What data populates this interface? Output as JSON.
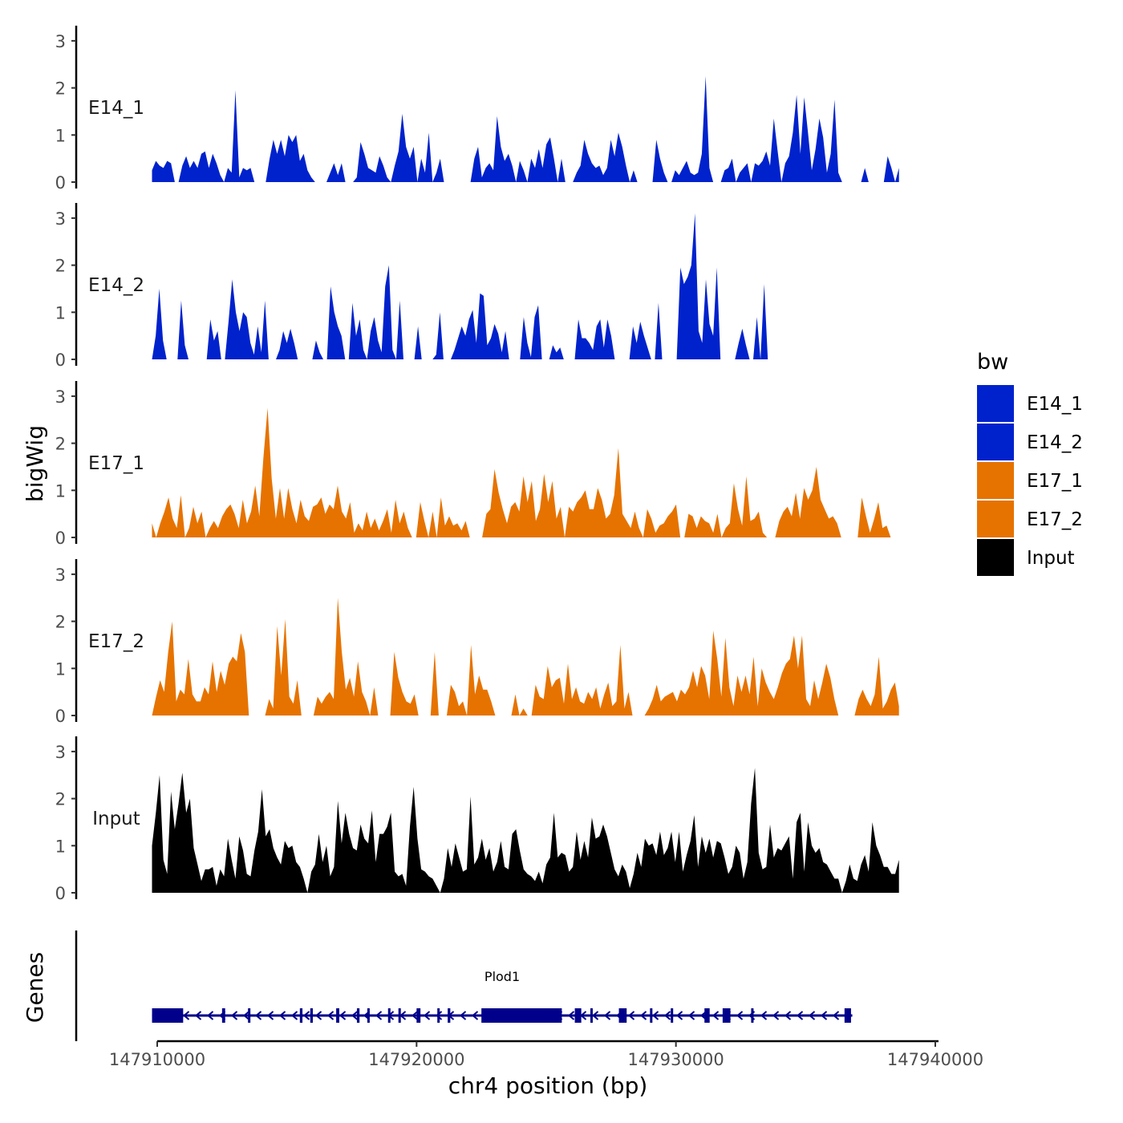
{
  "chart_data": {
    "type": "area",
    "title": "",
    "ylabel": "bigWig",
    "genes_label": "Genes",
    "xlabel": "chr4 position (bp)",
    "xlim": [
      147908000,
      147940000
    ],
    "data_xrange": [
      147909800,
      147938600
    ],
    "x_ticks": [
      147910000,
      147920000,
      147930000,
      147940000
    ],
    "x_tick_labels": [
      "147910000",
      "147920000",
      "147930000",
      "147940000"
    ],
    "ylim": [
      0,
      3.3
    ],
    "y_ticks": [
      0,
      1,
      2,
      3
    ],
    "y_tick_labels": [
      "0",
      "1",
      "2",
      "3"
    ],
    "legend": {
      "title": "bw",
      "position": "right",
      "entries": [
        {
          "label": "E14_1",
          "color": "#0022cc"
        },
        {
          "label": "E14_2",
          "color": "#0022cc"
        },
        {
          "label": "E17_1",
          "color": "#e67300"
        },
        {
          "label": "E17_2",
          "color": "#e67300"
        },
        {
          "label": "Input",
          "color": "#000000"
        }
      ]
    },
    "series": [
      {
        "name": "E14_1",
        "color": "#0022cc",
        "values": [
          0.25,
          0.45,
          0.35,
          0.3,
          0.45,
          0.4,
          0.0,
          0.0,
          0.35,
          0.55,
          0.3,
          0.45,
          0.3,
          0.6,
          0.65,
          0.3,
          0.6,
          0.4,
          0.15,
          0.0,
          0.3,
          0.2,
          1.95,
          0.1,
          0.3,
          0.25,
          0.3,
          0.0,
          0.0,
          0.0,
          0.0,
          0.5,
          0.9,
          0.6,
          0.9,
          0.55,
          1.0,
          0.85,
          1.0,
          0.45,
          0.6,
          0.25,
          0.1,
          0.0,
          0.0,
          0.0,
          0.0,
          0.2,
          0.4,
          0.15,
          0.4,
          0.0,
          0.0,
          0.0,
          0.1,
          0.85,
          0.6,
          0.3,
          0.25,
          0.2,
          0.55,
          0.35,
          0.1,
          0.0,
          0.35,
          0.65,
          1.45,
          0.75,
          0.5,
          0.75,
          0.0,
          0.5,
          0.2,
          1.05,
          0.0,
          0.2,
          0.5,
          0.0,
          0.0,
          0.0,
          0.0,
          0.0,
          0.0,
          0.0,
          0.0,
          0.5,
          0.75,
          0.1,
          0.3,
          0.4,
          0.25,
          1.4,
          0.75,
          0.45,
          0.6,
          0.35,
          0.0,
          0.45,
          0.25,
          0.0,
          0.5,
          0.3,
          0.7,
          0.3,
          0.8,
          0.95,
          0.5,
          0.0,
          0.5,
          0.0,
          0.0,
          0.0,
          0.2,
          0.35,
          0.9,
          0.6,
          0.4,
          0.3,
          0.35,
          0.15,
          0.3,
          0.9,
          0.55,
          1.05,
          0.75,
          0.35,
          0.0,
          0.25,
          0.0,
          0.0,
          0.0,
          0.0,
          0.0,
          0.9,
          0.5,
          0.2,
          0.0,
          0.0,
          0.25,
          0.15,
          0.3,
          0.45,
          0.2,
          0.15,
          0.2,
          0.6,
          2.25,
          0.3,
          0.0,
          0.0,
          0.0,
          0.25,
          0.3,
          0.5,
          0.0,
          0.2,
          0.3,
          0.4,
          0.0,
          0.4,
          0.35,
          0.45,
          0.65,
          0.35,
          1.35,
          0.65,
          0.0,
          0.4,
          0.55,
          1.05,
          1.85,
          0.6,
          1.8,
          1.05,
          0.25,
          0.7,
          1.35,
          0.95,
          0.2,
          0.6,
          1.75,
          0.2,
          0.0,
          0.0,
          0.0,
          0.0,
          0.0,
          0.0,
          0.3,
          0.0,
          0.0,
          0.0,
          0.0,
          0.0,
          0.55,
          0.3,
          0.0,
          0.3
        ]
      },
      {
        "name": "E14_2",
        "color": "#0022cc",
        "values": [
          0.0,
          0.5,
          1.5,
          0.4,
          0.0,
          0.0,
          0.0,
          0.0,
          1.25,
          0.3,
          0.0,
          0.0,
          0.0,
          0.0,
          0.0,
          0.0,
          0.85,
          0.4,
          0.6,
          0.0,
          0.0,
          0.8,
          1.7,
          1.0,
          0.6,
          1.0,
          0.9,
          0.35,
          0.1,
          0.7,
          0.15,
          1.25,
          0.0,
          0.0,
          0.0,
          0.2,
          0.6,
          0.35,
          0.65,
          0.35,
          0.0,
          0.0,
          0.0,
          0.0,
          0.0,
          0.4,
          0.15,
          0.0,
          0.0,
          1.55,
          1.0,
          0.7,
          0.5,
          0.0,
          0.0,
          1.2,
          0.5,
          0.85,
          0.2,
          0.0,
          0.6,
          0.9,
          0.4,
          0.15,
          1.55,
          2.0,
          0.2,
          0.0,
          1.25,
          0.0,
          0.0,
          0.0,
          0.0,
          0.7,
          0.0,
          0.0,
          0.0,
          0.0,
          0.1,
          1.0,
          0.0,
          0.0,
          0.0,
          0.2,
          0.45,
          0.7,
          0.5,
          0.85,
          1.05,
          0.35,
          1.4,
          1.35,
          0.3,
          0.45,
          0.75,
          0.55,
          0.15,
          0.6,
          0.0,
          0.0,
          0.0,
          0.0,
          0.9,
          0.35,
          0.05,
          0.9,
          1.15,
          0.0,
          0.0,
          0.0,
          0.3,
          0.15,
          0.25,
          0.0,
          0.0,
          0.0,
          0.0,
          0.85,
          0.45,
          0.45,
          0.35,
          0.2,
          0.7,
          0.85,
          0.25,
          0.85,
          0.5,
          0.0,
          0.0,
          0.0,
          0.0,
          0.0,
          0.7,
          0.35,
          0.8,
          0.5,
          0.25,
          0.0,
          0.0,
          1.2,
          0.0,
          0.0,
          0.0,
          0.0,
          0.0,
          1.95,
          1.6,
          1.75,
          2.0,
          3.1,
          0.6,
          0.35,
          1.7,
          0.75,
          0.5,
          1.95,
          0.0,
          0.0,
          0.0,
          0.0,
          0.0,
          0.35,
          0.65,
          0.3,
          0.0,
          0.0,
          0.9,
          0.0,
          1.6,
          0.0,
          0.0,
          0.0,
          0.0,
          0.0,
          0.0,
          0.0,
          0.0,
          0.0,
          0.0,
          0.0,
          0.0,
          0.0,
          0.0,
          0.0,
          0.0,
          0.0,
          0.0,
          0.0,
          0.0,
          0.0,
          0.0,
          0.0,
          0.0,
          0.0,
          0.0,
          0.0,
          0.0,
          0.0,
          0.0,
          0.0,
          0.0,
          0.0,
          0.0,
          0.0,
          0.0,
          0.0
        ]
      },
      {
        "name": "E17_1",
        "color": "#e67300",
        "values": [
          0.3,
          0.0,
          0.3,
          0.55,
          0.85,
          0.4,
          0.2,
          0.9,
          0.0,
          0.2,
          0.65,
          0.3,
          0.55,
          0.0,
          0.2,
          0.35,
          0.2,
          0.45,
          0.6,
          0.7,
          0.5,
          0.2,
          0.8,
          0.3,
          0.55,
          1.1,
          0.45,
          1.7,
          2.75,
          1.25,
          0.4,
          1.05,
          0.4,
          1.05,
          0.6,
          0.3,
          0.8,
          0.45,
          0.35,
          0.65,
          0.7,
          0.85,
          0.5,
          0.7,
          0.6,
          1.1,
          0.55,
          0.4,
          0.75,
          0.1,
          0.3,
          0.15,
          0.55,
          0.2,
          0.4,
          0.15,
          0.35,
          0.6,
          0.1,
          0.8,
          0.3,
          0.55,
          0.2,
          0.0,
          0.0,
          0.75,
          0.35,
          0.0,
          0.55,
          0.0,
          0.85,
          0.25,
          0.45,
          0.25,
          0.3,
          0.15,
          0.35,
          0.0,
          0.0,
          0.0,
          0.0,
          0.5,
          0.6,
          1.45,
          0.95,
          0.6,
          0.3,
          0.65,
          0.75,
          0.55,
          1.3,
          0.75,
          1.2,
          0.35,
          0.6,
          1.35,
          0.75,
          1.2,
          0.4,
          0.65,
          0.0,
          0.65,
          0.55,
          0.75,
          0.85,
          1.0,
          0.6,
          0.6,
          1.05,
          0.8,
          0.4,
          0.5,
          0.9,
          1.9,
          0.5,
          0.35,
          0.2,
          0.55,
          0.2,
          0.0,
          0.6,
          0.4,
          0.1,
          0.25,
          0.3,
          0.45,
          0.55,
          0.7,
          0.0,
          0.0,
          0.5,
          0.45,
          0.2,
          0.45,
          0.35,
          0.3,
          0.1,
          0.5,
          0.0,
          0.2,
          0.3,
          1.15,
          0.6,
          0.25,
          1.3,
          0.35,
          0.4,
          0.55,
          0.1,
          0.0,
          0.0,
          0.0,
          0.35,
          0.55,
          0.65,
          0.45,
          0.95,
          0.4,
          1.05,
          0.8,
          1.0,
          1.5,
          0.8,
          0.6,
          0.4,
          0.45,
          0.3,
          0.0,
          0.0,
          0.0,
          0.0,
          0.0,
          0.85,
          0.45,
          0.1,
          0.4,
          0.75,
          0.2,
          0.25,
          0.0,
          0.0,
          0.0
        ]
      },
      {
        "name": "E17_2",
        "color": "#e67300",
        "values": [
          0.0,
          0.4,
          0.75,
          0.5,
          1.35,
          2.0,
          0.3,
          0.55,
          0.45,
          1.2,
          0.45,
          0.3,
          0.3,
          0.6,
          0.45,
          1.15,
          0.5,
          0.95,
          0.65,
          1.1,
          1.25,
          1.15,
          1.75,
          1.35,
          0.0,
          0.0,
          0.0,
          0.0,
          0.0,
          0.35,
          0.15,
          1.9,
          0.85,
          2.05,
          0.4,
          0.25,
          0.75,
          0.0,
          0.0,
          0.0,
          0.0,
          0.4,
          0.25,
          0.4,
          0.5,
          0.35,
          2.5,
          1.35,
          0.55,
          0.8,
          0.4,
          1.15,
          0.5,
          0.3,
          0.0,
          0.6,
          0.0,
          0.0,
          0.0,
          0.0,
          1.35,
          0.8,
          0.5,
          0.3,
          0.25,
          0.45,
          0.0,
          0.0,
          0.0,
          0.0,
          1.35,
          0.0,
          0.0,
          0.0,
          0.65,
          0.5,
          0.2,
          0.3,
          0.0,
          1.5,
          0.45,
          0.85,
          0.55,
          0.55,
          0.3,
          0.0,
          0.0,
          0.0,
          0.0,
          0.0,
          0.45,
          0.0,
          0.15,
          0.0,
          0.0,
          0.65,
          0.4,
          0.35,
          1.05,
          0.6,
          0.75,
          0.8,
          0.25,
          1.1,
          0.35,
          0.6,
          0.3,
          0.25,
          0.5,
          0.35,
          0.6,
          0.15,
          0.45,
          0.7,
          0.2,
          0.3,
          1.5,
          0.15,
          0.5,
          0.0,
          0.0,
          0.0,
          0.0,
          0.15,
          0.35,
          0.65,
          0.3,
          0.4,
          0.45,
          0.5,
          0.3,
          0.55,
          0.45,
          0.6,
          0.95,
          0.6,
          1.05,
          0.85,
          0.35,
          1.8,
          1.2,
          0.4,
          1.65,
          0.6,
          0.2,
          0.85,
          0.5,
          0.85,
          0.45,
          1.25,
          0.2,
          1.0,
          0.7,
          0.5,
          0.35,
          0.6,
          0.9,
          1.1,
          1.2,
          1.7,
          1.0,
          1.7,
          0.35,
          0.2,
          0.75,
          0.35,
          0.7,
          1.1,
          0.8,
          0.35,
          0.0,
          0.0,
          0.0,
          0.0,
          0.0,
          0.35,
          0.55,
          0.35,
          0.2,
          0.45,
          1.25,
          0.15,
          0.3,
          0.55,
          0.7,
          0.2
        ]
      },
      {
        "name": "Input",
        "color": "#000000",
        "values": [
          1.0,
          1.7,
          2.5,
          0.7,
          0.4,
          2.15,
          1.35,
          1.9,
          2.55,
          1.7,
          2.0,
          0.95,
          0.6,
          0.25,
          0.5,
          0.5,
          0.55,
          0.15,
          0.5,
          0.35,
          1.15,
          0.7,
          0.3,
          1.2,
          0.9,
          0.4,
          0.35,
          0.9,
          1.3,
          2.2,
          1.2,
          1.35,
          0.95,
          0.75,
          0.6,
          1.1,
          0.95,
          1.0,
          0.65,
          0.55,
          0.3,
          0.0,
          0.45,
          0.6,
          1.25,
          0.65,
          1.0,
          0.35,
          0.55,
          1.95,
          1.05,
          1.7,
          1.25,
          0.95,
          0.9,
          1.45,
          1.15,
          1.05,
          1.75,
          0.65,
          1.25,
          1.25,
          1.4,
          1.7,
          0.45,
          0.35,
          0.4,
          0.15,
          1.4,
          2.25,
          1.15,
          0.5,
          0.45,
          0.35,
          0.3,
          0.15,
          0.0,
          0.3,
          0.95,
          0.55,
          1.05,
          0.75,
          0.45,
          0.5,
          2.05,
          0.6,
          0.75,
          1.15,
          0.7,
          0.95,
          0.45,
          0.65,
          1.1,
          0.55,
          0.5,
          1.25,
          1.35,
          0.9,
          0.5,
          0.4,
          0.35,
          0.25,
          0.45,
          0.2,
          0.6,
          0.75,
          1.7,
          0.75,
          0.85,
          0.8,
          0.45,
          0.55,
          1.3,
          0.7,
          1.1,
          0.75,
          1.6,
          1.15,
          1.2,
          1.45,
          1.2,
          0.85,
          0.5,
          0.35,
          0.6,
          0.45,
          0.1,
          0.4,
          0.85,
          0.55,
          1.15,
          1.0,
          1.05,
          0.8,
          1.3,
          0.8,
          0.95,
          1.3,
          0.65,
          1.3,
          0.45,
          0.8,
          1.1,
          1.65,
          0.55,
          1.2,
          0.85,
          1.15,
          0.75,
          1.1,
          1.05,
          0.75,
          0.4,
          0.55,
          1.0,
          0.85,
          0.3,
          0.65,
          1.9,
          2.65,
          0.85,
          0.5,
          0.55,
          1.45,
          0.75,
          0.95,
          0.9,
          1.05,
          1.2,
          0.3,
          1.5,
          1.7,
          0.45,
          1.5,
          1.0,
          0.85,
          0.95,
          0.65,
          0.6,
          0.45,
          0.3,
          0.3,
          0.0,
          0.25,
          0.6,
          0.3,
          0.25,
          0.6,
          0.8,
          0.45,
          1.5,
          1.0,
          0.8,
          0.55,
          0.55,
          0.4,
          0.4,
          0.7
        ]
      }
    ],
    "gene": {
      "name": "Plod1",
      "start": 147909800,
      "end": 147936800,
      "strand": "-",
      "color": "#00008b",
      "exons": [
        [
          147909800,
          147911000
        ],
        [
          147912500,
          147912620
        ],
        [
          147913500,
          147913560
        ],
        [
          147915500,
          147915600
        ],
        [
          147915900,
          147916000
        ],
        [
          147916900,
          147917020
        ],
        [
          147917700,
          147917800
        ],
        [
          147918100,
          147918160
        ],
        [
          147918900,
          147918980
        ],
        [
          147919300,
          147919340
        ],
        [
          147920000,
          147920150
        ],
        [
          147920800,
          147920860
        ],
        [
          147921200,
          147921300
        ],
        [
          147922500,
          147925600
        ],
        [
          147926100,
          147926350
        ],
        [
          147926700,
          147926780
        ],
        [
          147927800,
          147928100
        ],
        [
          147929000,
          147929060
        ],
        [
          147929800,
          147929850
        ],
        [
          147931100,
          147931300
        ],
        [
          147931800,
          147932100
        ],
        [
          147932900,
          147932980
        ],
        [
          147936500,
          147936750
        ]
      ]
    }
  }
}
